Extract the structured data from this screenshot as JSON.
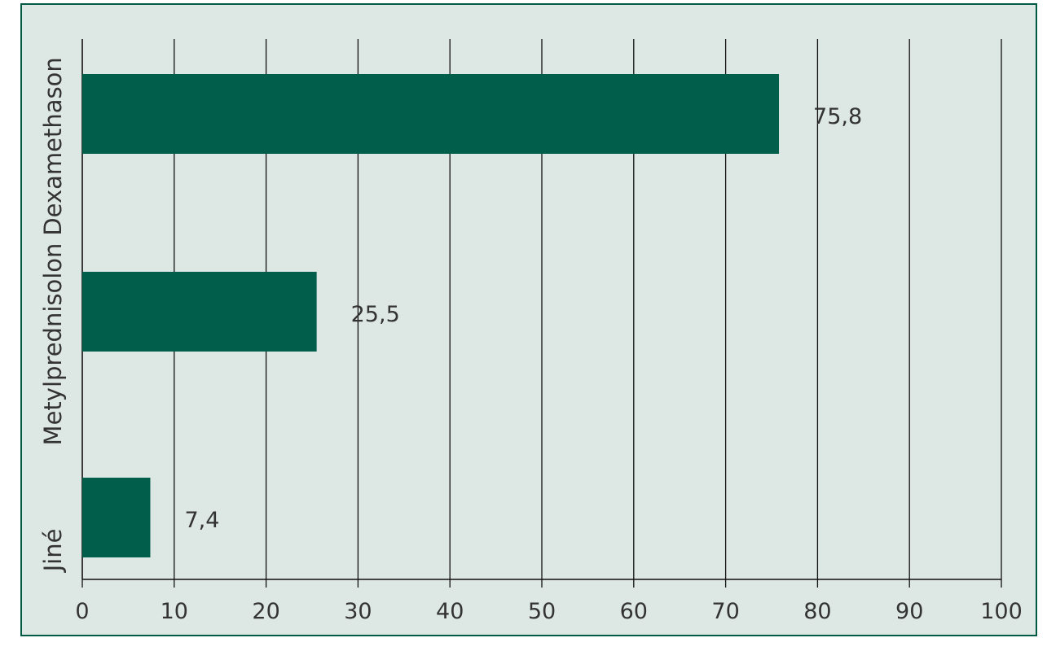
{
  "chart_data": {
    "type": "bar",
    "orientation": "horizontal",
    "categories": [
      "Dexamethason",
      "Metylprednisolon",
      "Jiné"
    ],
    "values": [
      75.8,
      25.5,
      7.4
    ],
    "value_labels": [
      "75,8",
      "25,5",
      "7,4"
    ],
    "xlim": [
      0,
      100
    ],
    "x_ticks": [
      "0",
      "10",
      "20",
      "30",
      "40",
      "50",
      "60",
      "70",
      "80",
      "90",
      "100"
    ],
    "grid": "vertical",
    "colors": {
      "bar": "#005e4b",
      "background": "#dde7e3",
      "border": "#005a44",
      "grid": "#111111"
    }
  }
}
